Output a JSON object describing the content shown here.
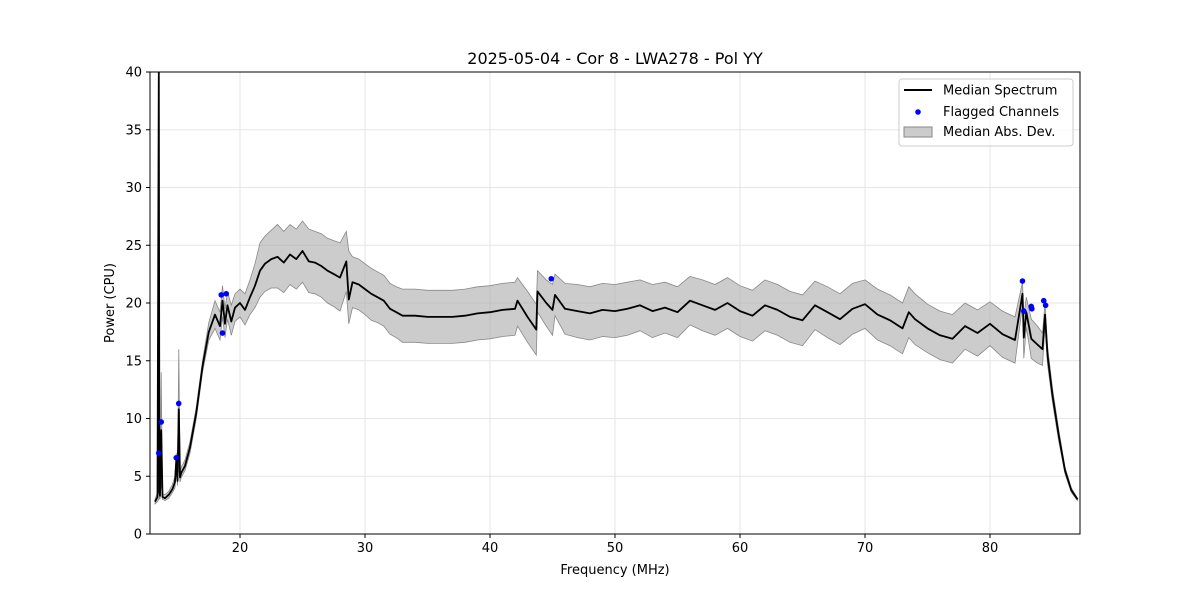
{
  "chart_data": {
    "type": "line",
    "title": "2025-05-04 - Cor 8 - LWA278 - Pol YY",
    "xlabel": "Frequency (MHz)",
    "ylabel": "Power (CPU)",
    "xlim": [
      12.8,
      87.2
    ],
    "ylim": [
      0,
      40
    ],
    "xticks": [
      20,
      30,
      40,
      50,
      60,
      70,
      80
    ],
    "yticks": [
      0,
      5,
      10,
      15,
      20,
      25,
      30,
      35,
      40
    ],
    "grid": true,
    "legend_position": "top-right",
    "legend": [
      {
        "label": "Median Spectrum",
        "kind": "line"
      },
      {
        "label": "Flagged Channels",
        "kind": "dot"
      },
      {
        "label": "Median Abs. Dev.",
        "kind": "patch"
      }
    ],
    "colors": {
      "line": "#000000",
      "flagged": "#0000ff",
      "band": "#aaaaaa",
      "band_edge": "#888888",
      "grid": "#e6e6e6"
    },
    "median_spectrum": {
      "x": [
        13.2,
        13.4,
        13.5,
        13.55,
        13.6,
        13.7,
        13.8,
        14.0,
        14.3,
        14.6,
        14.8,
        14.9,
        15.0,
        15.1,
        15.2,
        15.3,
        15.6,
        16.0,
        16.5,
        17.0,
        17.5,
        18.0,
        18.4,
        18.6,
        18.8,
        19.0,
        19.3,
        19.6,
        20.0,
        20.4,
        20.8,
        21.2,
        21.6,
        22.0,
        22.5,
        23.0,
        23.5,
        24.0,
        24.5,
        25.0,
        25.5,
        26.0,
        26.5,
        27.0,
        27.5,
        28.0,
        28.5,
        28.7,
        29.0,
        29.5,
        30.0,
        30.5,
        31.0,
        31.5,
        32.0,
        32.5,
        33.0,
        34.0,
        35.0,
        36.0,
        37.0,
        38.0,
        39.0,
        40.0,
        41.0,
        42.0,
        42.2,
        43.0,
        43.7,
        43.8,
        44.5,
        45.0,
        45.2,
        46.0,
        47.0,
        48.0,
        49.0,
        50.0,
        51.0,
        52.0,
        53.0,
        54.0,
        55.0,
        56.0,
        57.0,
        58.0,
        59.0,
        60.0,
        61.0,
        62.0,
        63.0,
        64.0,
        65.0,
        66.0,
        67.0,
        68.0,
        69.0,
        70.0,
        71.0,
        72.0,
        73.0,
        73.5,
        74.0,
        75.0,
        76.0,
        77.0,
        78.0,
        79.0,
        80.0,
        81.0,
        82.0,
        82.6,
        82.7,
        82.9,
        83.3,
        83.8,
        84.2,
        84.4,
        84.6,
        85.0,
        85.5,
        86.0,
        86.5,
        87.0
      ],
      "y": [
        2.8,
        3.2,
        40,
        3.6,
        3.3,
        9.0,
        3.2,
        3.1,
        3.4,
        3.9,
        4.5,
        6.4,
        4.6,
        10.8,
        4.9,
        5.3,
        5.9,
        7.5,
        10.5,
        14.5,
        17.5,
        19.0,
        18.0,
        20.2,
        18.2,
        19.8,
        18.4,
        19.6,
        20.0,
        19.4,
        20.5,
        21.5,
        22.8,
        23.4,
        23.8,
        24.0,
        23.5,
        24.2,
        23.8,
        24.5,
        23.6,
        23.5,
        23.2,
        22.8,
        22.5,
        22.2,
        23.6,
        20.3,
        21.8,
        21.6,
        21.2,
        20.8,
        20.5,
        20.2,
        19.5,
        19.2,
        18.9,
        18.9,
        18.8,
        18.8,
        18.8,
        18.9,
        19.1,
        19.2,
        19.4,
        19.5,
        20.2,
        18.8,
        17.7,
        21.0,
        20.0,
        19.4,
        20.7,
        19.5,
        19.3,
        19.1,
        19.4,
        19.3,
        19.5,
        19.8,
        19.3,
        19.6,
        19.2,
        20.2,
        19.8,
        19.4,
        20.0,
        19.3,
        18.9,
        19.8,
        19.4,
        18.8,
        18.5,
        19.8,
        19.2,
        18.6,
        19.5,
        19.9,
        19.0,
        18.5,
        17.8,
        19.2,
        18.6,
        17.8,
        17.2,
        16.9,
        18.0,
        17.4,
        18.2,
        17.3,
        16.8,
        20.8,
        17.0,
        19.2,
        16.9,
        16.4,
        16.0,
        19.0,
        15.5,
        12.0,
        8.5,
        5.5,
        3.8,
        3.0
      ],
      "color": "#000000"
    },
    "median_abs_dev": {
      "upper": [
        3.0,
        3.6,
        12.0,
        4.0,
        3.6,
        14.0,
        3.5,
        3.4,
        3.7,
        4.3,
        5.0,
        7.0,
        5.2,
        16.0,
        5.4,
        5.8,
        6.4,
        8.0,
        11.0,
        15.0,
        18.3,
        20.2,
        19.2,
        21.5,
        19.5,
        21.0,
        19.8,
        20.8,
        21.2,
        20.8,
        22.0,
        23.4,
        25.2,
        25.8,
        26.3,
        26.8,
        26.2,
        26.8,
        26.4,
        27.1,
        26.4,
        26.2,
        26.0,
        25.6,
        25.4,
        25.2,
        26.2,
        24.5,
        24.0,
        23.8,
        23.4,
        23.0,
        22.7,
        22.4,
        21.7,
        21.4,
        21.2,
        21.2,
        21.1,
        21.1,
        21.1,
        21.2,
        21.4,
        21.5,
        21.7,
        21.8,
        22.2,
        21.0,
        19.9,
        22.8,
        22.0,
        21.6,
        22.5,
        21.7,
        21.6,
        21.4,
        21.7,
        21.6,
        21.8,
        22.0,
        21.6,
        21.8,
        21.4,
        22.3,
        22.0,
        21.6,
        22.2,
        21.5,
        21.1,
        22.0,
        21.6,
        21.0,
        20.7,
        21.9,
        21.4,
        20.8,
        21.7,
        22.0,
        21.2,
        20.7,
        20.0,
        21.4,
        20.8,
        19.9,
        19.3,
        19.0,
        20.0,
        19.4,
        20.1,
        19.3,
        18.8,
        21.8,
        18.8,
        20.5,
        18.6,
        18.0,
        17.4,
        20.0,
        16.3,
        12.6,
        9.0,
        5.8,
        4.0,
        3.1
      ],
      "lower": [
        2.6,
        2.8,
        3.0,
        3.2,
        3.0,
        4.5,
        3.0,
        2.9,
        3.1,
        3.6,
        4.0,
        5.8,
        4.2,
        6.0,
        4.5,
        4.9,
        5.5,
        7.0,
        10.0,
        14.0,
        16.8,
        17.8,
        16.8,
        18.8,
        17.0,
        18.6,
        17.2,
        18.4,
        18.8,
        18.1,
        19.0,
        19.6,
        20.5,
        21.0,
        21.3,
        21.3,
        20.9,
        21.6,
        21.2,
        21.8,
        20.9,
        20.8,
        20.5,
        20.0,
        19.7,
        19.3,
        21.0,
        18.2,
        19.6,
        19.4,
        19.0,
        18.5,
        18.3,
        18.0,
        17.3,
        17.0,
        16.6,
        16.6,
        16.5,
        16.5,
        16.5,
        16.6,
        16.8,
        16.9,
        17.1,
        17.2,
        18.0,
        16.6,
        15.5,
        19.2,
        18.0,
        17.2,
        18.9,
        17.3,
        17.0,
        16.8,
        17.1,
        17.0,
        17.2,
        17.6,
        17.0,
        17.4,
        17.0,
        18.1,
        17.6,
        17.2,
        17.8,
        17.1,
        16.7,
        17.6,
        17.2,
        16.6,
        16.3,
        17.7,
        17.0,
        16.4,
        17.3,
        17.8,
        16.8,
        16.3,
        15.6,
        17.0,
        16.4,
        15.7,
        15.1,
        14.8,
        16.0,
        15.4,
        16.3,
        15.3,
        14.8,
        19.8,
        15.2,
        17.9,
        15.2,
        14.8,
        14.6,
        18.0,
        14.7,
        11.4,
        8.0,
        5.2,
        3.6,
        2.9
      ],
      "color": "#aaaaaa"
    },
    "flagged_channels": {
      "x": [
        13.5,
        13.7,
        14.9,
        15.1,
        18.5,
        18.6,
        18.9,
        44.9,
        82.6,
        82.7,
        83.3,
        83.35,
        84.3,
        84.45
      ],
      "y": [
        7.0,
        9.7,
        6.6,
        11.3,
        20.7,
        17.4,
        20.8,
        22.1,
        21.9,
        19.3,
        19.7,
        19.5,
        20.2,
        19.8
      ],
      "color": "#0000ff"
    }
  }
}
